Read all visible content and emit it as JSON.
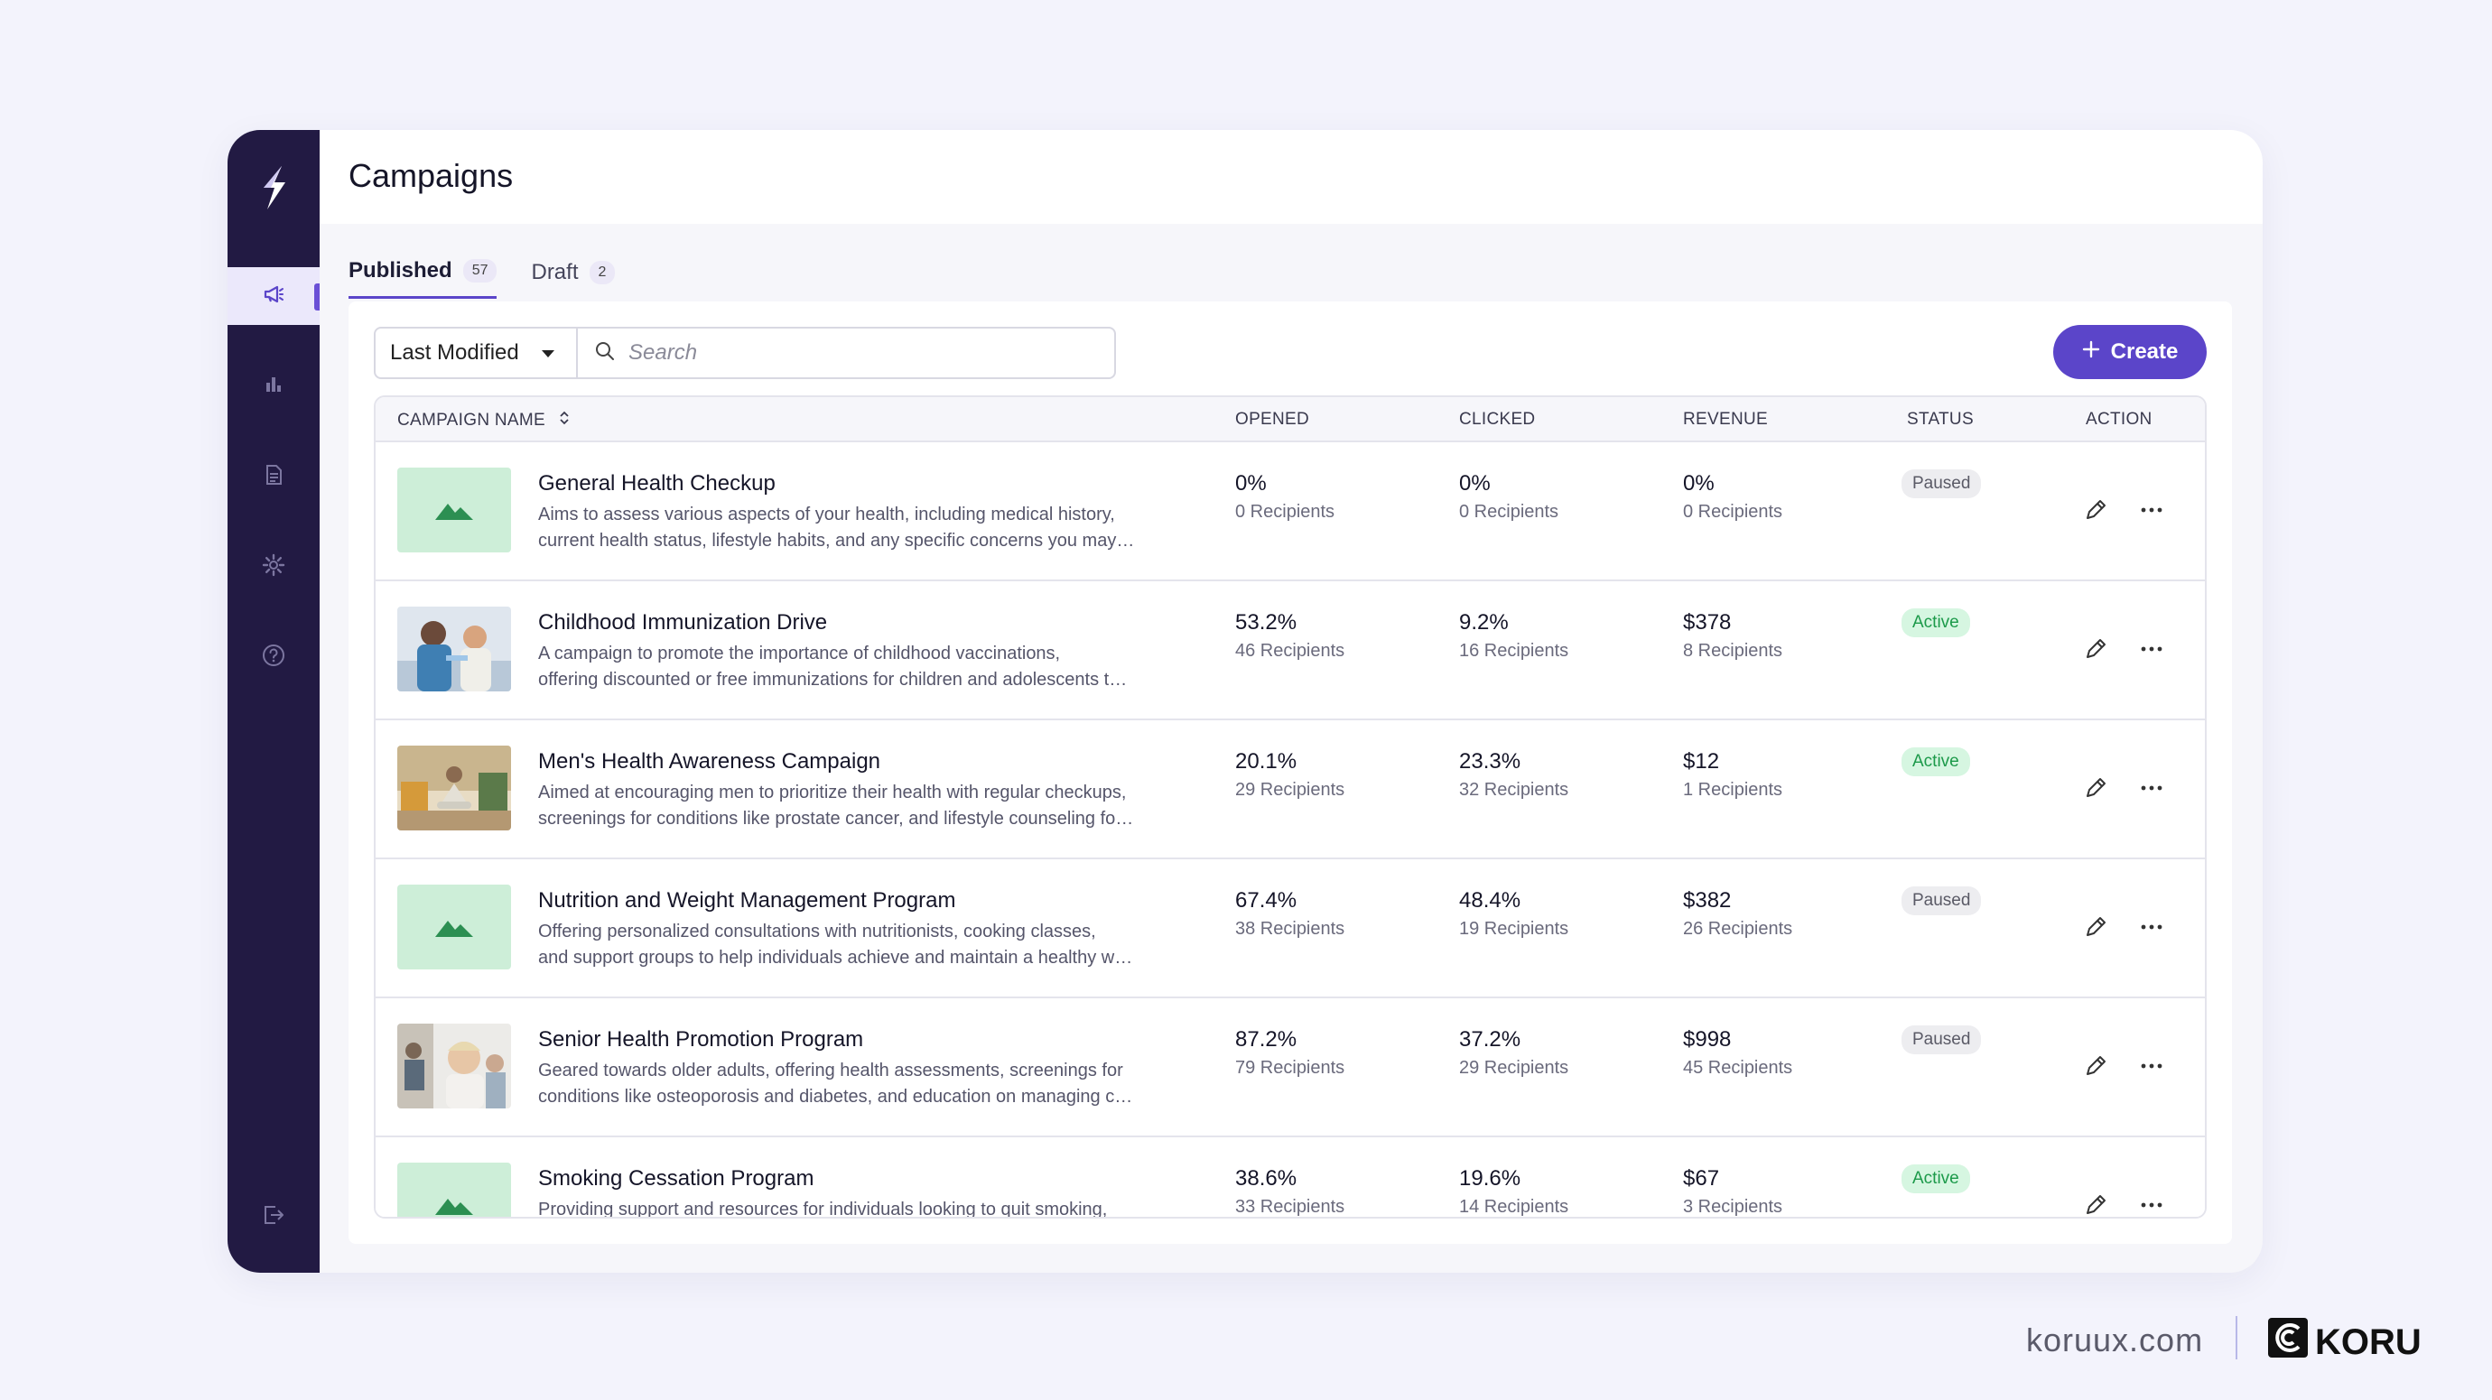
{
  "page": {
    "title": "Campaigns"
  },
  "sidebar": {
    "items": [
      {
        "name": "campaigns",
        "icon": "megaphone-icon",
        "active": true
      },
      {
        "name": "analytics",
        "icon": "bar-chart-icon",
        "active": false
      },
      {
        "name": "documents",
        "icon": "document-icon",
        "active": false
      },
      {
        "name": "settings",
        "icon": "gear-icon",
        "active": false
      },
      {
        "name": "help",
        "icon": "help-icon",
        "active": false
      },
      {
        "name": "logout",
        "icon": "logout-icon",
        "active": false
      }
    ]
  },
  "tabs": [
    {
      "label": "Published",
      "count": "57",
      "active": true
    },
    {
      "label": "Draft",
      "count": "2",
      "active": false
    }
  ],
  "toolbar": {
    "sort_value": "Last Modified",
    "search_placeholder": "Search",
    "create_label": "Create"
  },
  "table": {
    "headers": {
      "name": "CAMPAIGN NAME",
      "opened": "OPENED",
      "clicked": "CLICKED",
      "revenue": "REVENUE",
      "status": "STATUS",
      "action": "ACTION"
    },
    "rows": [
      {
        "name": "General Health Checkup",
        "desc1": "Aims to assess various aspects of your health, including medical history,",
        "desc2": "current health status, lifestyle habits, and any specific concerns you may…",
        "opened": "0%",
        "opened_sub": "0 Recipients",
        "clicked": "0%",
        "clicked_sub": "0 Recipients",
        "revenue": "0%",
        "revenue_sub": "0 Recipients",
        "status": "Paused",
        "image": "placeholder"
      },
      {
        "name": "Childhood Immunization Drive",
        "desc1": "A campaign to promote the importance of childhood vaccinations,",
        "desc2": "offering discounted or free immunizations for children and adolescents t…",
        "opened": "53.2%",
        "opened_sub": "46 Recipients",
        "clicked": "9.2%",
        "clicked_sub": "16 Recipients",
        "revenue": "$378",
        "revenue_sub": "8 Recipients",
        "status": "Active",
        "image": "photo-nurse"
      },
      {
        "name": "Men's Health Awareness Campaign",
        "desc1": "Aimed at encouraging men to prioritize their health with regular checkups,",
        "desc2": "screenings for conditions like prostate cancer, and lifestyle counseling fo…",
        "opened": "20.1%",
        "opened_sub": "29 Recipients",
        "clicked": "23.3%",
        "clicked_sub": "32 Recipients",
        "revenue": "$12",
        "revenue_sub": "1 Recipients",
        "status": "Active",
        "image": "photo-meditation"
      },
      {
        "name": "Nutrition and Weight Management Program",
        "desc1": "Offering personalized consultations with nutritionists, cooking classes,",
        "desc2": "and support groups to help individuals achieve and maintain a healthy w…",
        "opened": "67.4%",
        "opened_sub": "38 Recipients",
        "clicked": "48.4%",
        "clicked_sub": "19 Recipients",
        "revenue": "$382",
        "revenue_sub": "26 Recipients",
        "status": "Paused",
        "image": "placeholder"
      },
      {
        "name": "Senior Health Promotion Program",
        "desc1": "Geared towards older adults, offering health assessments, screenings for",
        "desc2": "conditions like osteoporosis and diabetes, and education on managing c…",
        "opened": "87.2%",
        "opened_sub": "79 Recipients",
        "clicked": "37.2%",
        "clicked_sub": "29 Recipients",
        "revenue": "$998",
        "revenue_sub": "45 Recipients",
        "status": "Paused",
        "image": "photo-senior"
      },
      {
        "name": "Smoking Cessation Program",
        "desc1": "Providing support and resources for individuals looking to quit smoking,",
        "desc2": "",
        "opened": "38.6%",
        "opened_sub": "33 Recipients",
        "clicked": "19.6%",
        "clicked_sub": "14 Recipients",
        "revenue": "$67",
        "revenue_sub": "3 Recipients",
        "status": "Active",
        "image": "placeholder"
      }
    ]
  },
  "footer": {
    "site": "koruux.com",
    "brand": "KORU"
  },
  "colors": {
    "accent": "#5b45c9",
    "sidebar": "#221a43",
    "active_green": "#1c9a4a",
    "placeholder_green": "#cdeed8"
  }
}
